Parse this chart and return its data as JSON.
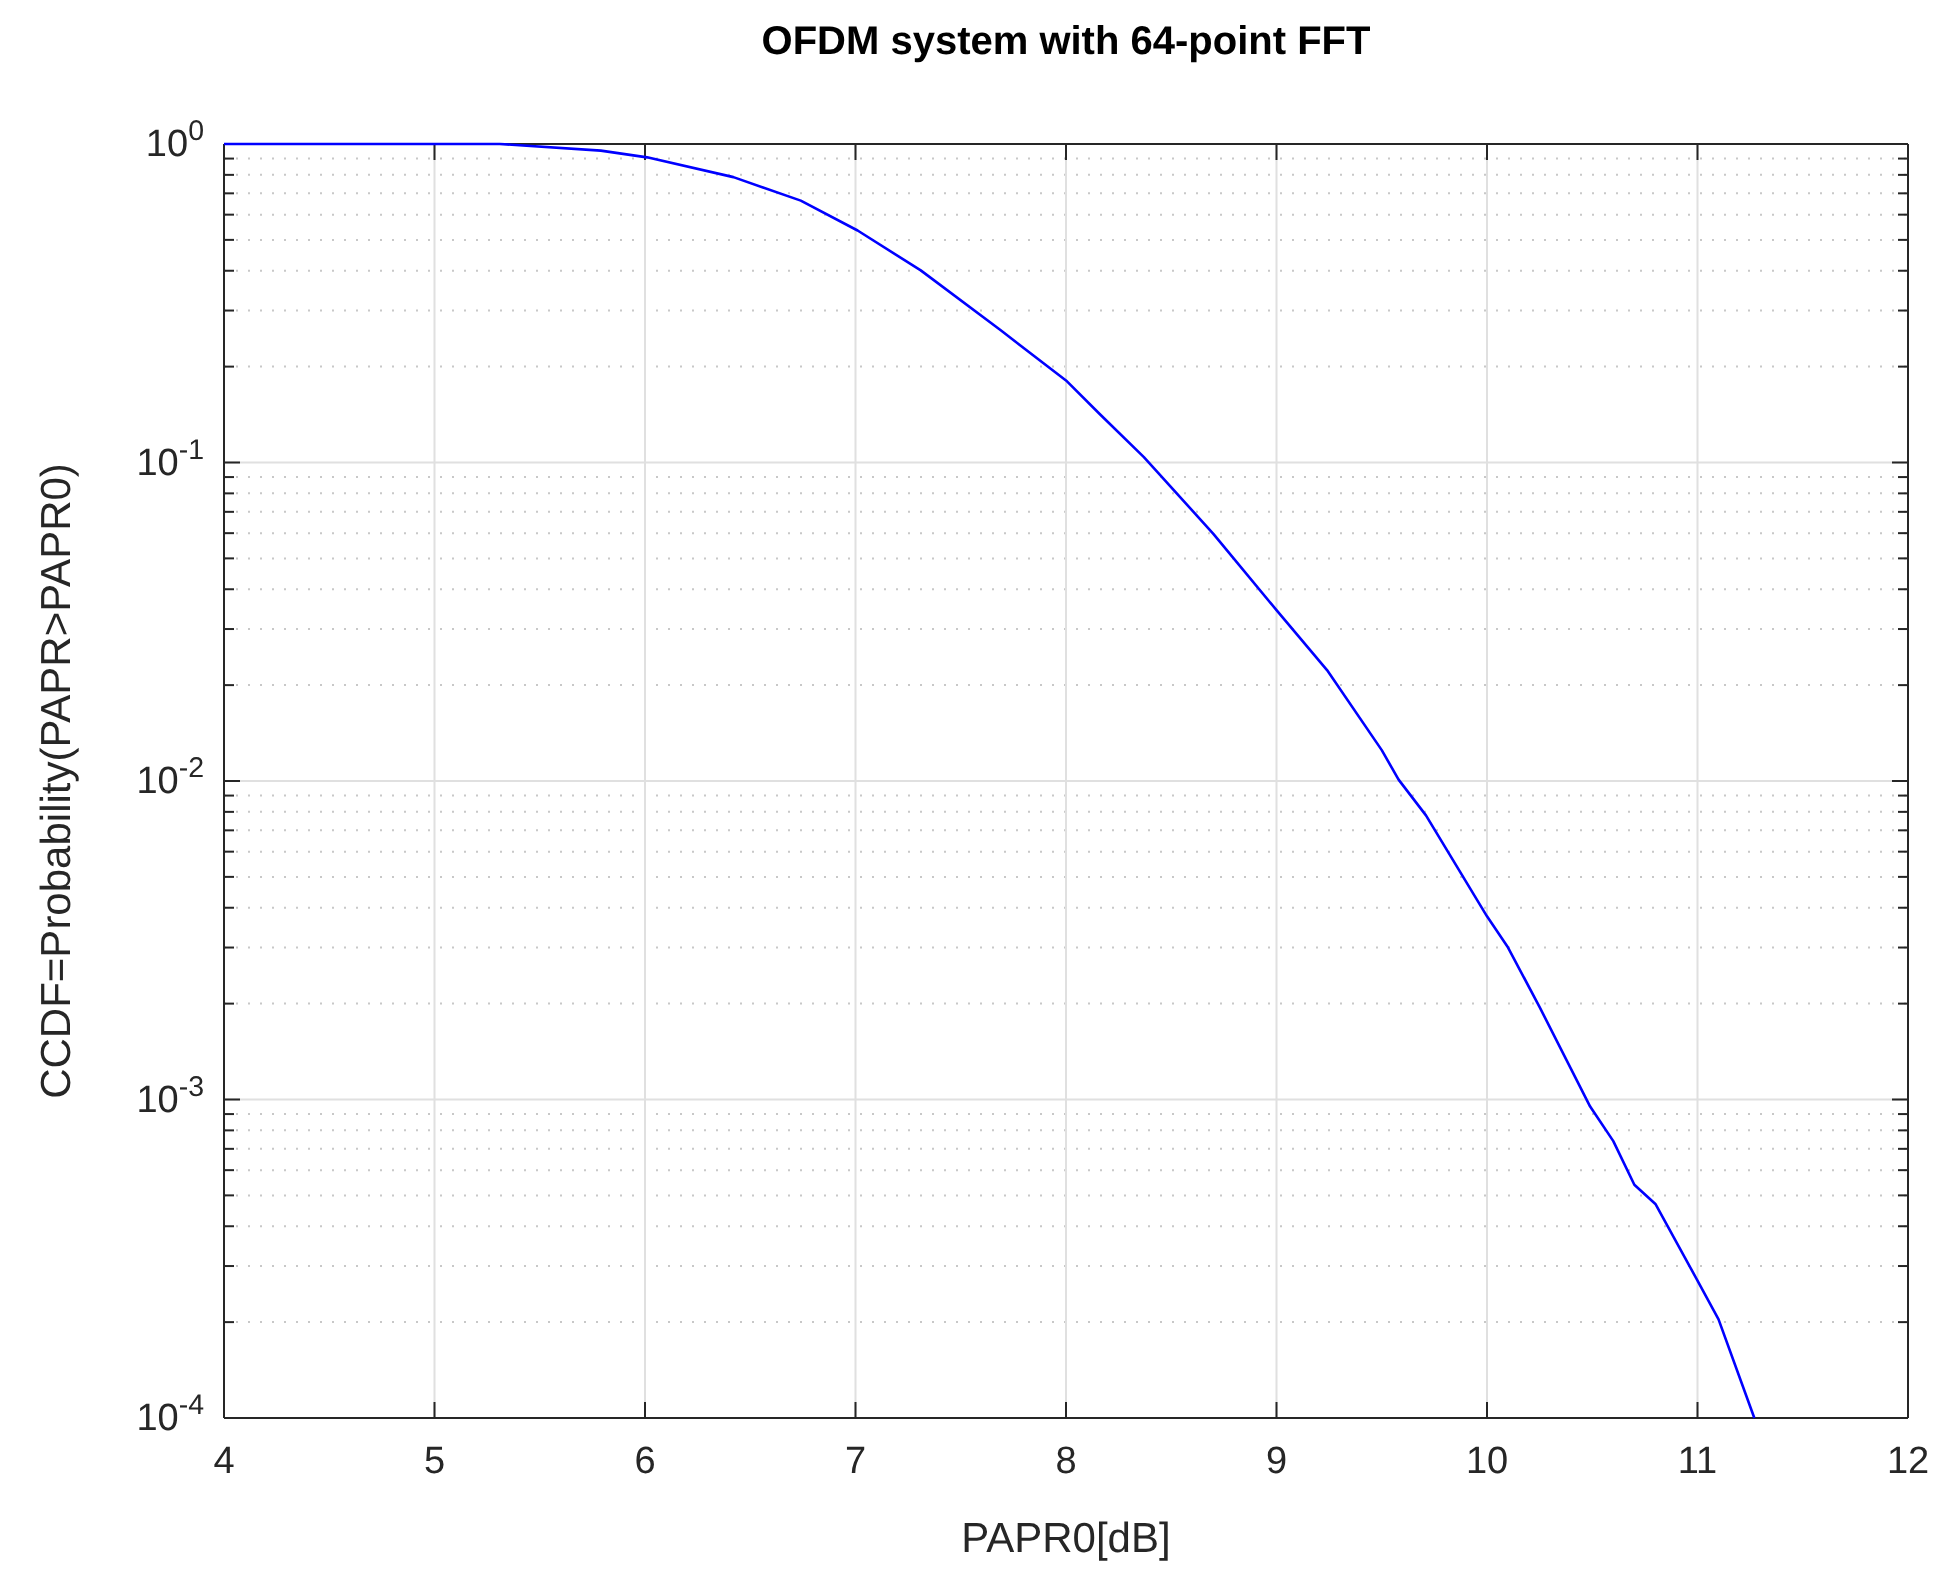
{
  "chart_data": {
    "type": "line",
    "title": "OFDM system with 64-point FFT",
    "xlabel": "PAPR0[dB]",
    "ylabel": "CCDF=Probability(PAPR>PAPR0)",
    "log": "y",
    "grid": true,
    "marker": "none",
    "line_style": "solid",
    "xlim": [
      4,
      12
    ],
    "xticks": [
      4,
      5,
      6,
      7,
      8,
      9,
      10,
      11,
      12
    ],
    "ylim": [
      0.0001,
      1
    ],
    "yticks": [
      {
        "value": 0.0001,
        "label": "10$^{-4}$"
      },
      {
        "value": 0.001,
        "label": "10$^{-3}$"
      },
      {
        "value": 0.01,
        "label": "10$^{-2}$"
      },
      {
        "value": 0.1,
        "label": "10$^{-1}$"
      },
      {
        "value": 1,
        "label": "10$^{0}$"
      }
    ],
    "series": [
      {
        "color": "#0000ff",
        "x": [
          4,
          5.31,
          5.79,
          6.01,
          6.42,
          6.74,
          7.01,
          7.31,
          7.69,
          8.0,
          8.16,
          8.37,
          8.7,
          9.0,
          9.24,
          9.5,
          9.58,
          9.71,
          10.0,
          10.1,
          10.25,
          10.49,
          10.6,
          10.7,
          10.8,
          11.0,
          11.1,
          11.27
        ],
        "values": [
          1,
          1,
          0.953,
          0.908,
          0.787,
          0.664,
          0.535,
          0.401,
          0.26,
          0.181,
          0.142,
          0.104,
          0.0597,
          0.0344,
          0.0223,
          0.0125,
          0.0101,
          0.0078,
          0.00376,
          0.003,
          0.00195,
          0.00095,
          0.00074,
          0.00054,
          0.00047,
          0.00027,
          0.000204,
          0.0001
        ]
      }
    ]
  }
}
